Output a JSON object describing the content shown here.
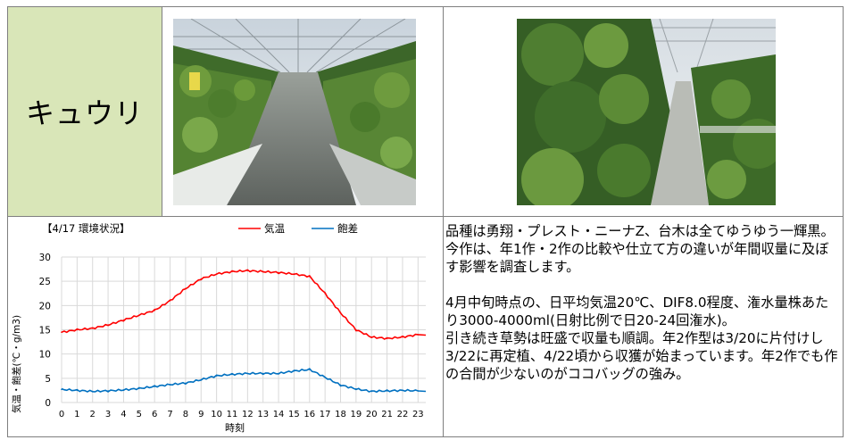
{
  "crop": {
    "title": "キュウリ"
  },
  "photos": [
    {
      "alt": "greenhouse-wide-view"
    },
    {
      "alt": "greenhouse-row-view"
    }
  ],
  "chart": {
    "title": "【4/17 環境状況】",
    "legend": [
      {
        "name": "気温",
        "color": "#ff0000"
      },
      {
        "name": "飽差",
        "color": "#0070c0"
      }
    ],
    "ylabel": "気温・飽差(℃・g/m3)",
    "xlabel": "時刻"
  },
  "chart_data": {
    "type": "line",
    "title": "【4/17 環境状況】",
    "xlabel": "時刻",
    "ylabel": "気温・飽差(℃・g/m3)",
    "x": [
      0,
      1,
      2,
      3,
      4,
      5,
      6,
      7,
      8,
      9,
      10,
      11,
      12,
      13,
      14,
      15,
      16,
      17,
      18,
      19,
      20,
      21,
      22,
      23
    ],
    "xlim": [
      0,
      23.5
    ],
    "ylim": [
      0,
      30
    ],
    "yticks": [
      0,
      5,
      10,
      15,
      20,
      25,
      30
    ],
    "grid": true,
    "legend_position": "top",
    "series": [
      {
        "name": "気温",
        "color": "#ff0000",
        "values": [
          14.5,
          15.0,
          15.3,
          16.0,
          17.0,
          18.0,
          19.0,
          21.0,
          23.5,
          25.5,
          26.5,
          27.0,
          27.2,
          27.0,
          26.8,
          26.5,
          26.0,
          22.5,
          18.5,
          15.0,
          13.5,
          13.2,
          13.5,
          14.0
        ]
      },
      {
        "name": "飽差",
        "color": "#0070c0",
        "values": [
          2.7,
          2.5,
          2.3,
          2.4,
          2.6,
          2.9,
          3.3,
          3.7,
          4.0,
          4.7,
          5.5,
          5.8,
          6.0,
          6.0,
          6.0,
          6.5,
          6.8,
          5.2,
          3.6,
          2.8,
          2.3,
          2.4,
          2.5,
          2.4
        ]
      }
    ]
  },
  "notes": {
    "para1": "品種は勇翔・プレスト・ニーナZ、台木は全てゆうゆう一輝黒。今作は、年1作・2作の比較や仕立て方の違いが年間収量に及ぼす影響を調査します。",
    "para2": "4月中旬時点の、日平均気温20℃、DIF8.0程度、潅水量株あたり3000-4000ml(日射比例で日20-24回潅水)。",
    "para3": "引き続き草勢は旺盛で収量も順調。年2作型は3/20に片付けし3/22に再定植、4/22頃から収獲が始まっています。年2作でも作の合間が少ないのがココバッグの強み。"
  }
}
